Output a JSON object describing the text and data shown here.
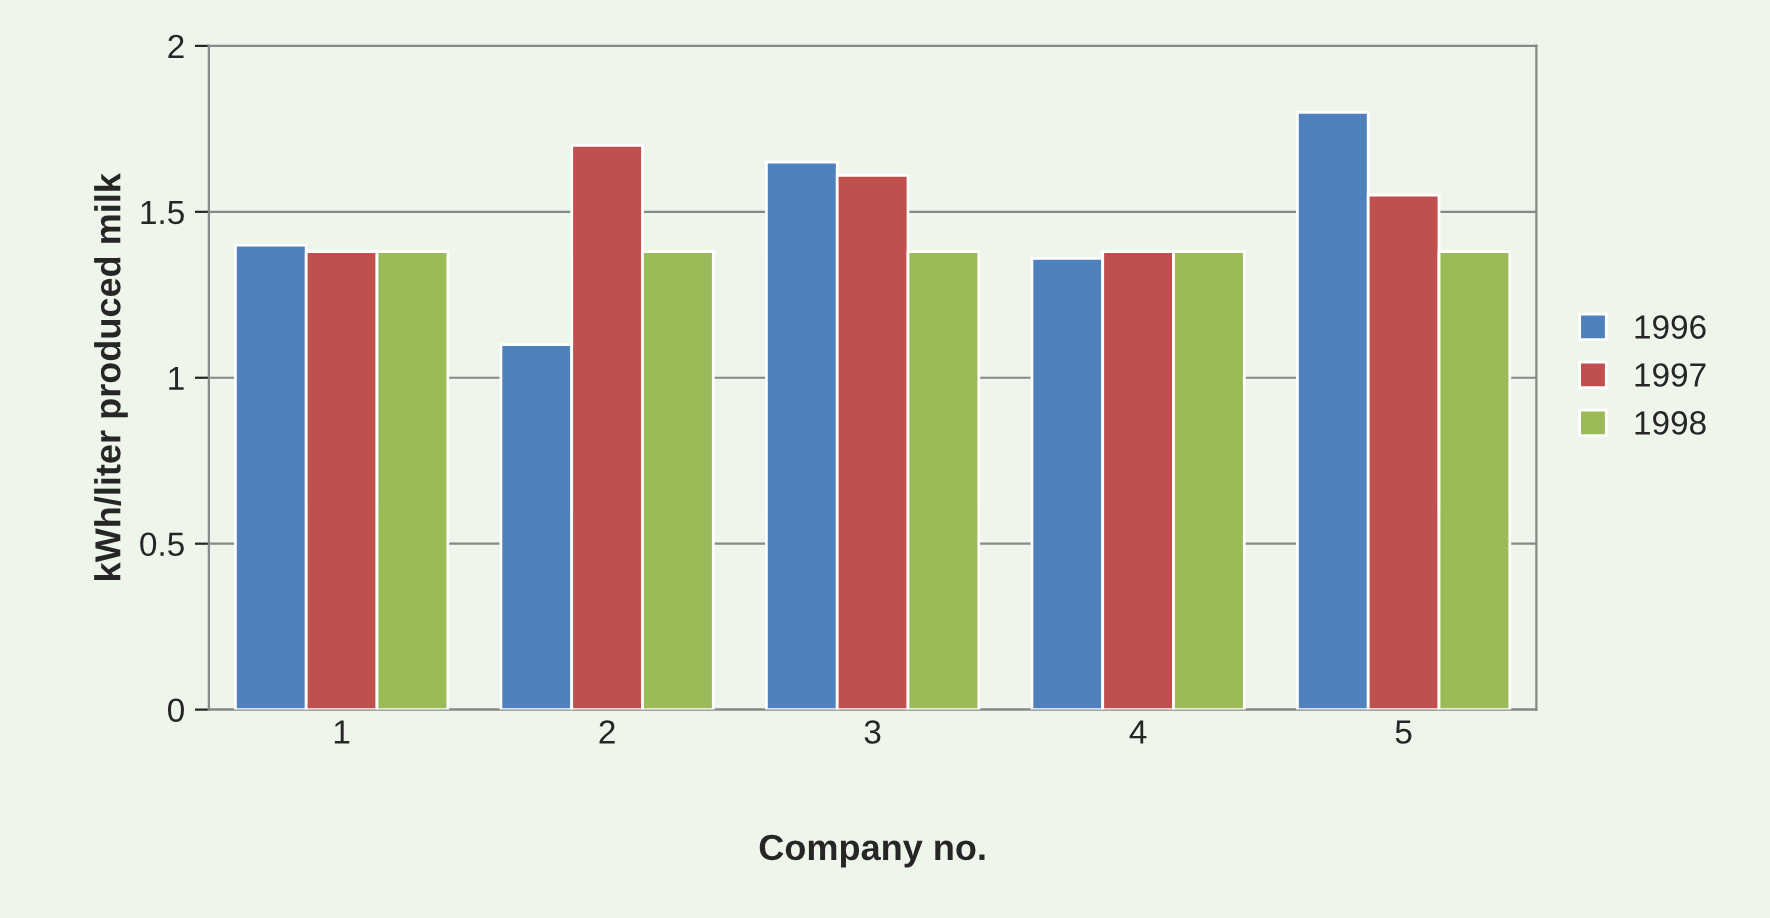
{
  "chart_data": {
    "type": "bar",
    "xlabel": "Company no.",
    "ylabel": "kWh/liter produced milk",
    "categories": [
      "1",
      "2",
      "3",
      "4",
      "5"
    ],
    "series": [
      {
        "name": "1996",
        "color": "#4f81bd",
        "values": [
          1.4,
          1.1,
          1.65,
          1.36,
          1.8
        ]
      },
      {
        "name": "1997",
        "color": "#c0504d",
        "values": [
          1.38,
          1.7,
          1.61,
          1.38,
          1.55
        ]
      },
      {
        "name": "1998",
        "color": "#9bbb59",
        "values": [
          1.38,
          1.38,
          1.38,
          1.38,
          1.38
        ]
      }
    ],
    "ylim": [
      0,
      2
    ],
    "yticks": [
      0,
      0.5,
      1,
      1.5,
      2
    ],
    "grid": "y",
    "legend": "right"
  }
}
